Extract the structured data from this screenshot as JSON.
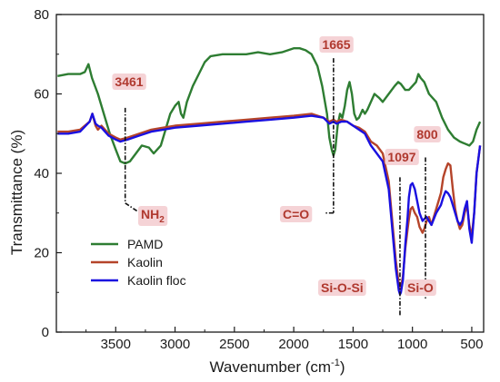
{
  "chart_data": {
    "type": "line",
    "title": "",
    "xlabel": "Wavenumber (cm",
    "xlabel_sup": "-1",
    "xlabel_tail": ")",
    "ylabel": "Transmittance (%)",
    "xlim": [
      4000,
      400
    ],
    "ylim": [
      0,
      80
    ],
    "x_ticks": [
      3500,
      3000,
      2500,
      2000,
      1500,
      1000,
      500
    ],
    "x_tick_labels": [
      "3500",
      "3000",
      "2500",
      "2000",
      "1500",
      "1000",
      "500"
    ],
    "y_ticks": [
      0,
      20,
      40,
      60,
      80
    ],
    "y_tick_labels": [
      "0",
      "20",
      "40",
      "60",
      "80"
    ],
    "grid": false,
    "legend_position": "bottom-left",
    "series": [
      {
        "name": "PAMD",
        "color": "#2e7d32",
        "points": [
          [
            3990,
            64.5
          ],
          [
            3900,
            65
          ],
          [
            3800,
            65
          ],
          [
            3760,
            65.5
          ],
          [
            3730,
            67.5
          ],
          [
            3700,
            64
          ],
          [
            3650,
            60
          ],
          [
            3600,
            55
          ],
          [
            3550,
            50
          ],
          [
            3500,
            46
          ],
          [
            3461,
            43
          ],
          [
            3420,
            42.5
          ],
          [
            3380,
            43
          ],
          [
            3330,
            45
          ],
          [
            3280,
            47
          ],
          [
            3220,
            46.5
          ],
          [
            3180,
            45
          ],
          [
            3120,
            47
          ],
          [
            3080,
            51
          ],
          [
            3040,
            55
          ],
          [
            3000,
            57
          ],
          [
            2970,
            58
          ],
          [
            2950,
            55
          ],
          [
            2930,
            54
          ],
          [
            2900,
            58
          ],
          [
            2850,
            62
          ],
          [
            2800,
            65
          ],
          [
            2750,
            68
          ],
          [
            2700,
            69.5
          ],
          [
            2600,
            70
          ],
          [
            2500,
            70
          ],
          [
            2400,
            70
          ],
          [
            2300,
            70.5
          ],
          [
            2200,
            70
          ],
          [
            2100,
            70.5
          ],
          [
            2000,
            71.5
          ],
          [
            1950,
            71.5
          ],
          [
            1900,
            71
          ],
          [
            1850,
            70
          ],
          [
            1800,
            67
          ],
          [
            1760,
            62
          ],
          [
            1720,
            55
          ],
          [
            1700,
            49
          ],
          [
            1680,
            46
          ],
          [
            1665,
            44.5
          ],
          [
            1650,
            46
          ],
          [
            1630,
            52
          ],
          [
            1610,
            55
          ],
          [
            1590,
            54
          ],
          [
            1570,
            57
          ],
          [
            1550,
            61
          ],
          [
            1530,
            63
          ],
          [
            1510,
            60
          ],
          [
            1490,
            55
          ],
          [
            1470,
            53.5
          ],
          [
            1450,
            54
          ],
          [
            1420,
            56
          ],
          [
            1400,
            55
          ],
          [
            1380,
            56
          ],
          [
            1350,
            58
          ],
          [
            1320,
            60
          ],
          [
            1280,
            59
          ],
          [
            1250,
            58
          ],
          [
            1200,
            60
          ],
          [
            1150,
            62
          ],
          [
            1120,
            63
          ],
          [
            1097,
            62.5
          ],
          [
            1060,
            61
          ],
          [
            1030,
            61
          ],
          [
            1000,
            62
          ],
          [
            970,
            63
          ],
          [
            950,
            65
          ],
          [
            930,
            64
          ],
          [
            900,
            63
          ],
          [
            860,
            60
          ],
          [
            800,
            58
          ],
          [
            750,
            54
          ],
          [
            700,
            51
          ],
          [
            650,
            49
          ],
          [
            600,
            48
          ],
          [
            560,
            47.5
          ],
          [
            520,
            47
          ],
          [
            490,
            48
          ],
          [
            460,
            51
          ],
          [
            430,
            53
          ]
        ]
      },
      {
        "name": "Kaolin",
        "color": "#b5442a",
        "points": [
          [
            3990,
            50.5
          ],
          [
            3900,
            50.5
          ],
          [
            3800,
            51
          ],
          [
            3720,
            53
          ],
          [
            3697,
            55
          ],
          [
            3670,
            52
          ],
          [
            3650,
            51
          ],
          [
            3620,
            52
          ],
          [
            3560,
            50
          ],
          [
            3500,
            49
          ],
          [
            3461,
            48.5
          ],
          [
            3400,
            49
          ],
          [
            3300,
            50
          ],
          [
            3200,
            51
          ],
          [
            3100,
            51.5
          ],
          [
            3000,
            52
          ],
          [
            2800,
            52.5
          ],
          [
            2600,
            53
          ],
          [
            2400,
            53.5
          ],
          [
            2200,
            54
          ],
          [
            2000,
            54.5
          ],
          [
            1850,
            55
          ],
          [
            1750,
            54
          ],
          [
            1700,
            53
          ],
          [
            1665,
            53.5
          ],
          [
            1640,
            53
          ],
          [
            1600,
            53.5
          ],
          [
            1550,
            53
          ],
          [
            1500,
            52
          ],
          [
            1450,
            51.5
          ],
          [
            1400,
            50.5
          ],
          [
            1350,
            48
          ],
          [
            1300,
            47
          ],
          [
            1250,
            45
          ],
          [
            1200,
            38
          ],
          [
            1170,
            28
          ],
          [
            1140,
            18
          ],
          [
            1115,
            12
          ],
          [
            1105,
            11
          ],
          [
            1097,
            11.5
          ],
          [
            1080,
            14
          ],
          [
            1060,
            21
          ],
          [
            1040,
            26
          ],
          [
            1030,
            28.5
          ],
          [
            1015,
            31
          ],
          [
            1000,
            31.5
          ],
          [
            980,
            30
          ],
          [
            960,
            29
          ],
          [
            940,
            26.5
          ],
          [
            915,
            25
          ],
          [
            900,
            26
          ],
          [
            880,
            28
          ],
          [
            860,
            29
          ],
          [
            840,
            27
          ],
          [
            820,
            29
          ],
          [
            800,
            31
          ],
          [
            780,
            33
          ],
          [
            760,
            35
          ],
          [
            740,
            39
          ],
          [
            720,
            41
          ],
          [
            700,
            42.5
          ],
          [
            680,
            42
          ],
          [
            660,
            36
          ],
          [
            640,
            31
          ],
          [
            620,
            28
          ],
          [
            600,
            26
          ],
          [
            580,
            27
          ],
          [
            560,
            30
          ],
          [
            540,
            32
          ],
          [
            520,
            27
          ],
          [
            500,
            24
          ],
          [
            480,
            30
          ],
          [
            460,
            40
          ],
          [
            430,
            47
          ]
        ]
      },
      {
        "name": "Kaolin floc",
        "color": "#1a10e0",
        "points": [
          [
            3990,
            50
          ],
          [
            3900,
            50
          ],
          [
            3800,
            50.5
          ],
          [
            3720,
            53
          ],
          [
            3697,
            55
          ],
          [
            3670,
            52.5
          ],
          [
            3650,
            52
          ],
          [
            3620,
            51.5
          ],
          [
            3560,
            49.5
          ],
          [
            3500,
            48.5
          ],
          [
            3461,
            48
          ],
          [
            3400,
            48.5
          ],
          [
            3300,
            49.5
          ],
          [
            3200,
            50.5
          ],
          [
            3100,
            51
          ],
          [
            3000,
            51.5
          ],
          [
            2800,
            52
          ],
          [
            2600,
            52.5
          ],
          [
            2400,
            53
          ],
          [
            2200,
            53.5
          ],
          [
            2000,
            54
          ],
          [
            1850,
            54.5
          ],
          [
            1750,
            54
          ],
          [
            1700,
            52.5
          ],
          [
            1665,
            53
          ],
          [
            1640,
            52.5
          ],
          [
            1600,
            53
          ],
          [
            1550,
            53
          ],
          [
            1500,
            52
          ],
          [
            1450,
            51
          ],
          [
            1400,
            50
          ],
          [
            1350,
            47
          ],
          [
            1300,
            45
          ],
          [
            1250,
            43
          ],
          [
            1200,
            36
          ],
          [
            1170,
            26
          ],
          [
            1140,
            16
          ],
          [
            1115,
            10.5
          ],
          [
            1105,
            9.5
          ],
          [
            1097,
            10
          ],
          [
            1080,
            13
          ],
          [
            1060,
            22
          ],
          [
            1040,
            29
          ],
          [
            1030,
            34
          ],
          [
            1015,
            37
          ],
          [
            1000,
            37.5
          ],
          [
            980,
            36
          ],
          [
            960,
            33
          ],
          [
            940,
            30
          ],
          [
            915,
            28
          ],
          [
            900,
            28.5
          ],
          [
            880,
            29
          ],
          [
            860,
            28
          ],
          [
            840,
            27
          ],
          [
            820,
            28.5
          ],
          [
            800,
            30
          ],
          [
            780,
            31
          ],
          [
            760,
            32
          ],
          [
            740,
            34
          ],
          [
            720,
            35.5
          ],
          [
            700,
            35
          ],
          [
            680,
            34
          ],
          [
            660,
            32
          ],
          [
            640,
            30
          ],
          [
            620,
            28
          ],
          [
            600,
            27
          ],
          [
            580,
            28
          ],
          [
            560,
            31
          ],
          [
            540,
            33
          ],
          [
            520,
            26
          ],
          [
            500,
            22.5
          ],
          [
            480,
            30
          ],
          [
            460,
            40
          ],
          [
            430,
            47
          ]
        ]
      }
    ],
    "annotations": [
      {
        "label": "3461",
        "x": 3420,
        "kind": "wavenumber"
      },
      {
        "label": "1665",
        "x": 1665,
        "kind": "wavenumber"
      },
      {
        "label": "1097",
        "x": 1105,
        "kind": "wavenumber"
      },
      {
        "label": "800",
        "x": 890,
        "kind": "wavenumber"
      },
      {
        "label": "NH",
        "sub": "2",
        "kind": "group"
      },
      {
        "label": "C=O",
        "kind": "group"
      },
      {
        "label": "Si-O-Si",
        "kind": "group"
      },
      {
        "label": "Si-O",
        "kind": "group"
      }
    ]
  }
}
